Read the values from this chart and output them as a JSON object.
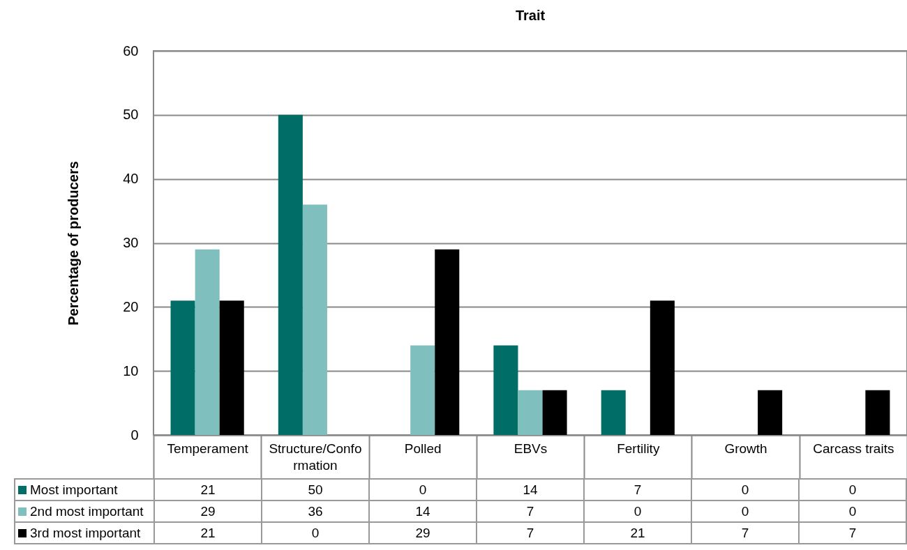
{
  "chart_data": {
    "type": "bar",
    "xlabel": "Trait",
    "ylabel": "Percentage of producers",
    "categories": [
      "Temperament",
      "Structure/Conformation",
      "Polled",
      "EBVs",
      "Fertility",
      "Growth",
      "Carcass traits"
    ],
    "series": [
      {
        "name": "Most important",
        "color": "#006d66",
        "values": [
          21,
          50,
          0,
          14,
          7,
          0,
          0
        ]
      },
      {
        "name": "2nd most important",
        "color": "#7fbfbd",
        "values": [
          29,
          36,
          14,
          7,
          0,
          0,
          0
        ]
      },
      {
        "name": "3rd most important",
        "color": "#000000",
        "values": [
          21,
          0,
          29,
          7,
          21,
          7,
          7
        ]
      }
    ],
    "ylim": [
      0,
      60
    ],
    "yticks": [
      0,
      10,
      20,
      30,
      40,
      50,
      60
    ],
    "grid": "y",
    "legend": "bottom",
    "data_labels": true
  }
}
